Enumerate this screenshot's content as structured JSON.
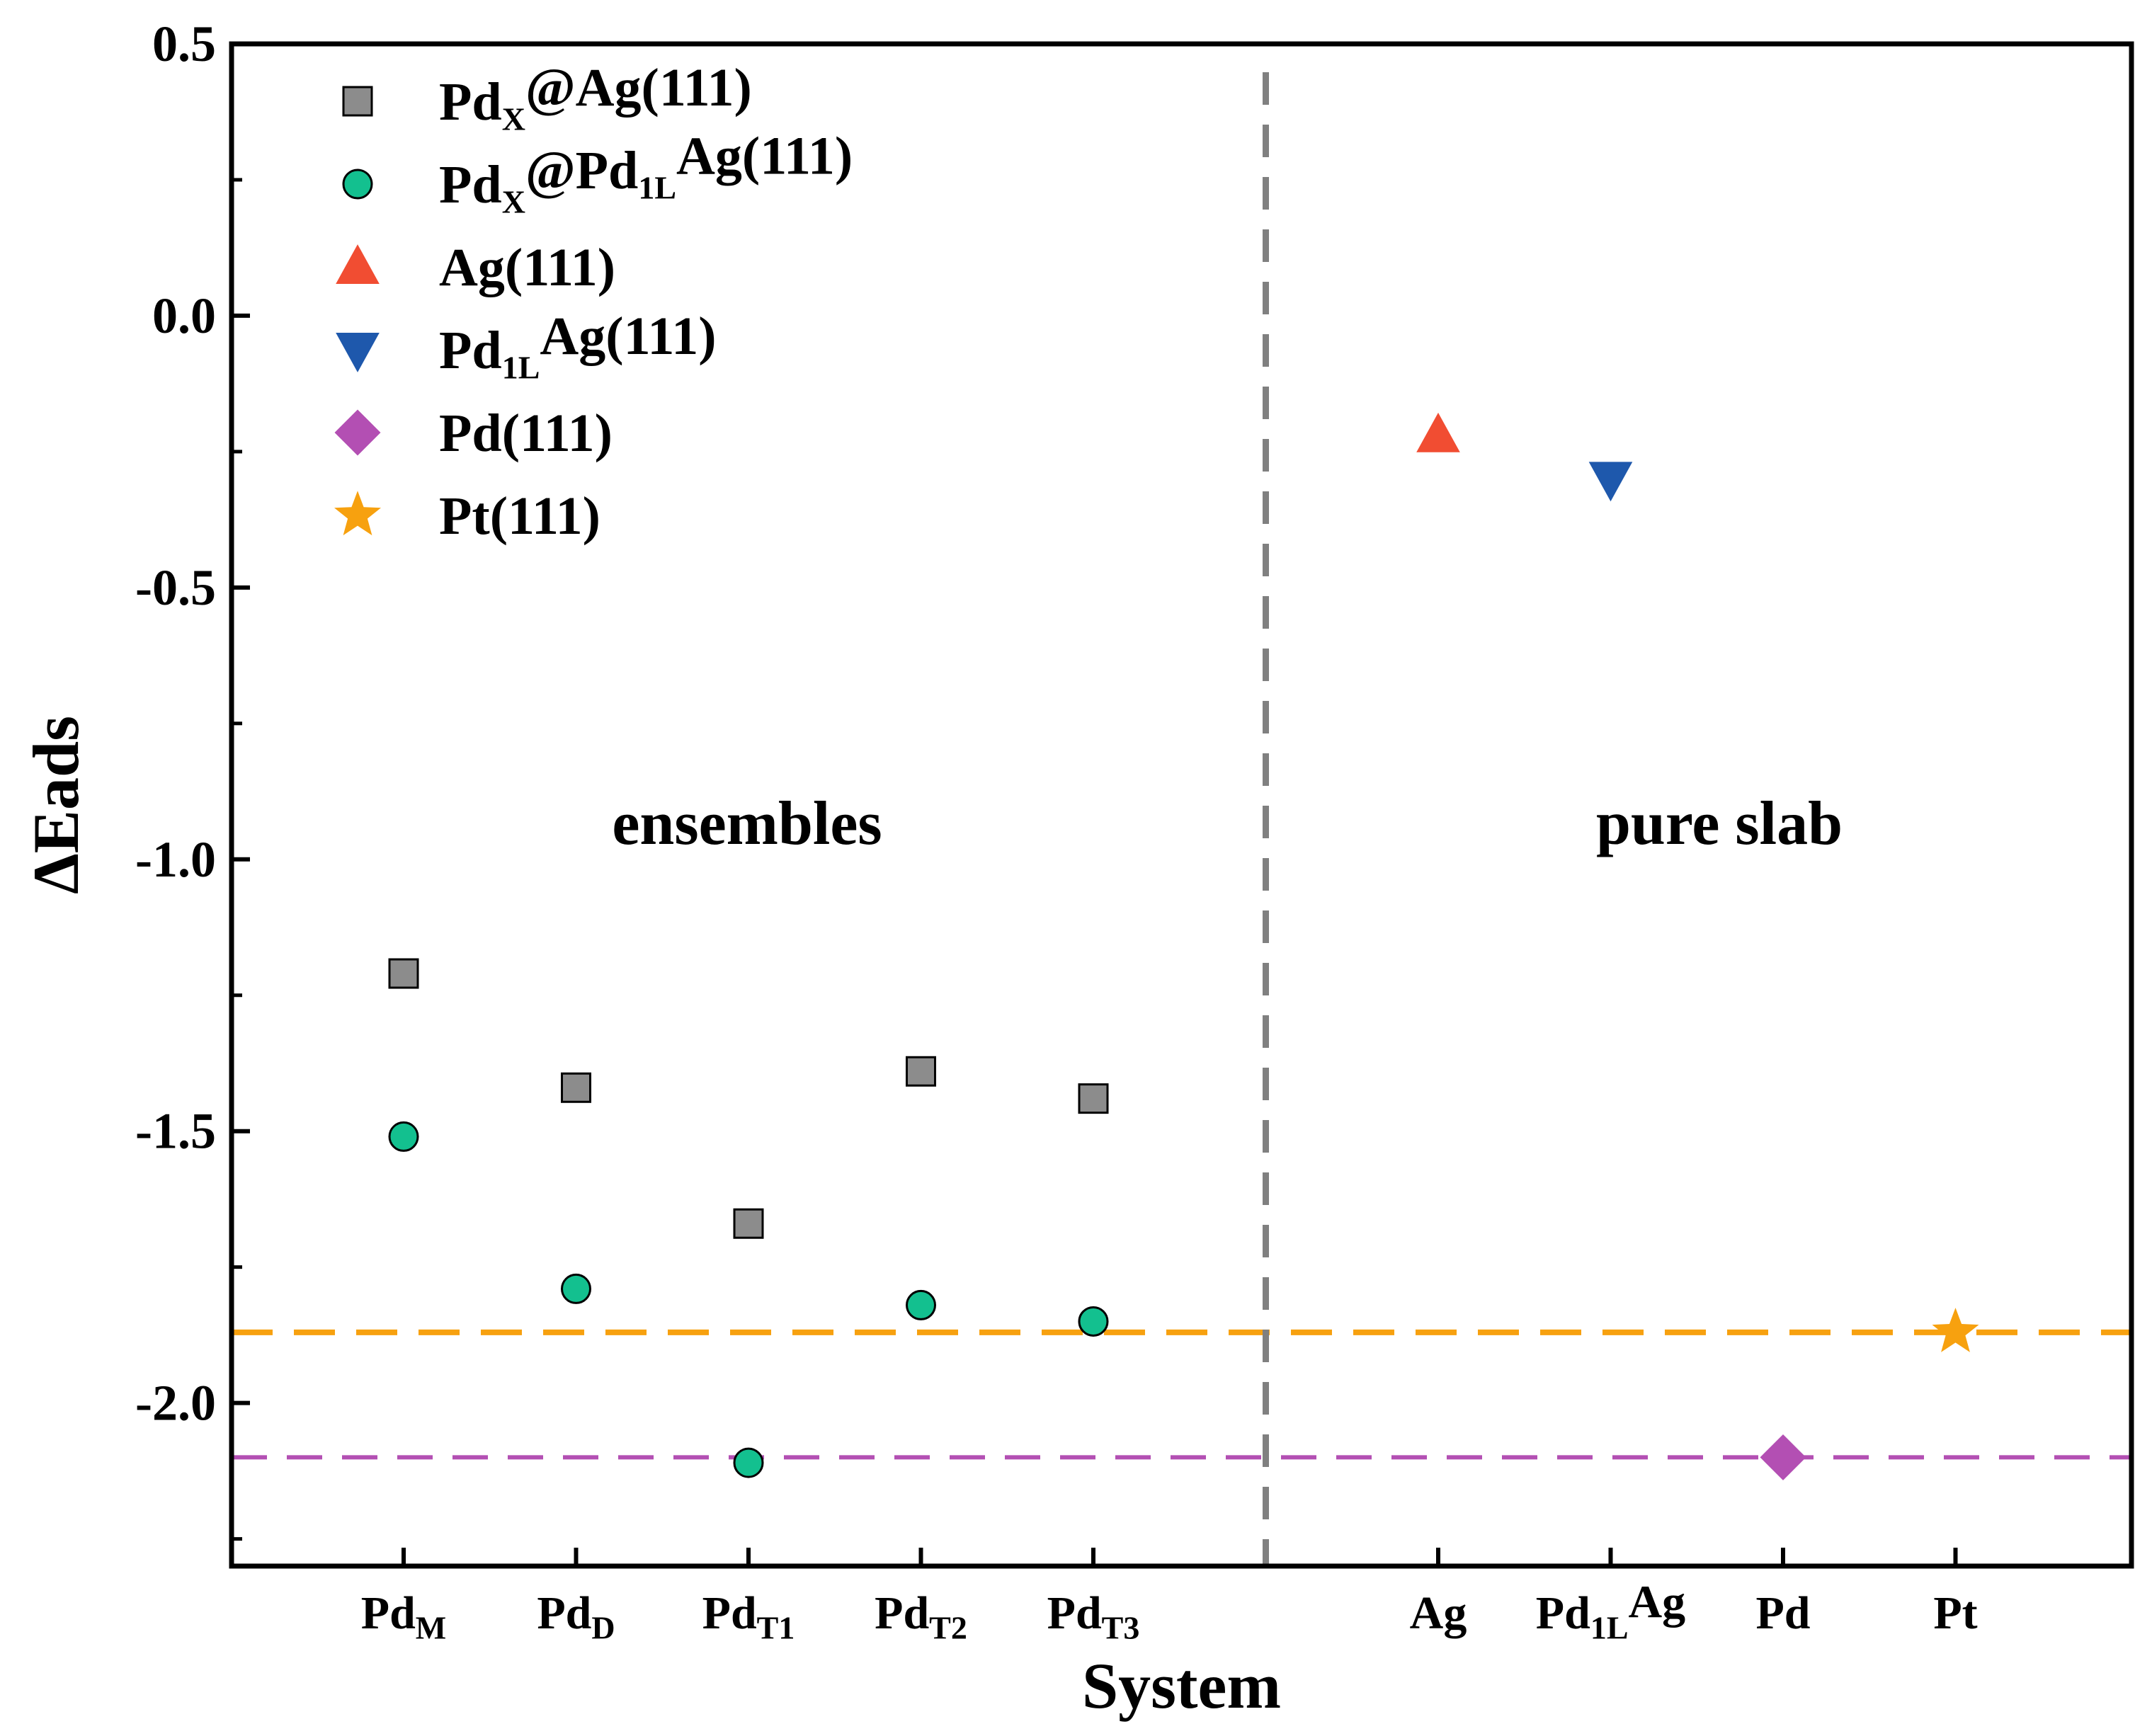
{
  "chart_data": {
    "type": "scatter",
    "xlabel": "System",
    "ylabel": "ΔEads",
    "ylim": [
      -2.3,
      0.5
    ],
    "yticks": [
      0.5,
      0.0,
      -0.5,
      -1.0,
      -1.5,
      -2.0
    ],
    "ytick_labels": [
      "0.5",
      "0.0",
      "-0.5",
      "-1.0",
      "-1.5",
      "-2.0"
    ],
    "minor_y_step": 0.25,
    "categories": [
      {
        "id": "PdM",
        "base": "Pd",
        "sub": "M",
        "trail": ""
      },
      {
        "id": "PdD",
        "base": "Pd",
        "sub": "D",
        "trail": ""
      },
      {
        "id": "PdT1",
        "base": "Pd",
        "sub": "T1",
        "trail": ""
      },
      {
        "id": "PdT2",
        "base": "Pd",
        "sub": "T2",
        "trail": ""
      },
      {
        "id": "PdT3",
        "base": "Pd",
        "sub": "T3",
        "trail": ""
      },
      {
        "id": "gap",
        "base": "",
        "sub": "",
        "trail": ""
      },
      {
        "id": "Ag",
        "base": "Ag",
        "sub": "",
        "trail": ""
      },
      {
        "id": "Pd1LAg",
        "base": "Pd",
        "sub": "1L",
        "trail": "Ag"
      },
      {
        "id": "Pd",
        "base": "Pd",
        "sub": "",
        "trail": ""
      },
      {
        "id": "Pt",
        "base": "Pt",
        "sub": "",
        "trail": ""
      }
    ],
    "series": [
      {
        "name": "PdX@Ag(111)",
        "legend": {
          "base": "Pd",
          "sub": "X",
          "trail": "@Ag(111)"
        },
        "marker": "square",
        "color": "#8c8c8c",
        "points": [
          {
            "x": 0,
            "y": -1.21
          },
          {
            "x": 1,
            "y": -1.42
          },
          {
            "x": 2,
            "y": -1.67
          },
          {
            "x": 3,
            "y": -1.39
          },
          {
            "x": 4,
            "y": -1.44
          }
        ]
      },
      {
        "name": "PdX@Pd1LAg(111)",
        "legend": {
          "base": "Pd",
          "sub": "X",
          "trail": "@Pd",
          "sub2": "1L",
          "trail2": "Ag(111)"
        },
        "marker": "circle",
        "color": "#13c08f",
        "points": [
          {
            "x": 0,
            "y": -1.51
          },
          {
            "x": 1,
            "y": -1.79
          },
          {
            "x": 2,
            "y": -2.11
          },
          {
            "x": 3,
            "y": -1.82
          },
          {
            "x": 4,
            "y": -1.85
          }
        ]
      },
      {
        "name": "Ag(111)",
        "legend": {
          "base": "Ag(111)"
        },
        "marker": "triangle-up",
        "color": "#f14d32",
        "points": [
          {
            "x": 6,
            "y": -0.22
          }
        ]
      },
      {
        "name": "Pd1LAg(111)",
        "legend": {
          "base": "Pd",
          "sub": "1L",
          "trail": "Ag(111)"
        },
        "marker": "triangle-down",
        "color": "#1e58ac",
        "points": [
          {
            "x": 7,
            "y": -0.3
          }
        ]
      },
      {
        "name": "Pd(111)",
        "legend": {
          "base": "Pd(111)"
        },
        "marker": "diamond",
        "color": "#b34fb3",
        "points": [
          {
            "x": 8,
            "y": -2.1
          }
        ]
      },
      {
        "name": "Pt(111)",
        "legend": {
          "base": "Pt(111)"
        },
        "marker": "star",
        "color": "#f7a10f",
        "points": [
          {
            "x": 9,
            "y": -1.87
          }
        ]
      }
    ],
    "reference_lines": [
      {
        "name": "Pt(111) level",
        "y": -1.87,
        "color": "#f7a10f"
      },
      {
        "name": "Pd(111) level",
        "y": -2.1,
        "color": "#b34fb3"
      }
    ],
    "divider_after_x": 5,
    "divider_color": "#808080",
    "regions": [
      "ensembles",
      "pure slab"
    ],
    "legend_position": "top-left"
  }
}
